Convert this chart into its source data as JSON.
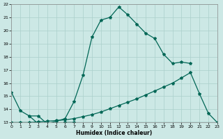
{
  "xlabel": "Humidex (Indice chaleur)",
  "xlim": [
    0,
    23
  ],
  "ylim": [
    13,
    22
  ],
  "xticks": [
    0,
    1,
    2,
    3,
    4,
    5,
    6,
    7,
    8,
    9,
    10,
    11,
    12,
    13,
    14,
    15,
    16,
    17,
    18,
    19,
    20,
    21,
    22,
    23
  ],
  "yticks": [
    13,
    14,
    15,
    16,
    17,
    18,
    19,
    20,
    21,
    22
  ],
  "bg_color": "#cce8e5",
  "grid_color": "#aacfcb",
  "line_color": "#006655",
  "curve_main_x": [
    2,
    3,
    4,
    5,
    6,
    7,
    8,
    9,
    10,
    11,
    12,
    13,
    14,
    15,
    16,
    17,
    18,
    19,
    20
  ],
  "curve_main_y": [
    13.5,
    13.5,
    12.9,
    13.1,
    13.3,
    14.6,
    16.6,
    19.5,
    20.8,
    21.0,
    21.8,
    21.2,
    20.5,
    19.8,
    19.4,
    18.2,
    17.5,
    17.6,
    17.5
  ],
  "curve_short_x": [
    0,
    1,
    2,
    3,
    4,
    5,
    6,
    7
  ],
  "curve_short_y": [
    15.3,
    13.9,
    13.5,
    12.9,
    12.9,
    12.9,
    13.0,
    13.0
  ],
  "line_flat_x": [
    2,
    3,
    4,
    5,
    6,
    7,
    8,
    9,
    10,
    11,
    12,
    13,
    14,
    15,
    16,
    17,
    18,
    19,
    20,
    21,
    22,
    23
  ],
  "line_flat_y": [
    13.0,
    13.0,
    13.0,
    13.0,
    13.0,
    13.0,
    13.0,
    13.0,
    13.0,
    13.0,
    13.0,
    13.0,
    13.0,
    13.0,
    13.0,
    13.0,
    13.0,
    13.0,
    13.0,
    13.0,
    13.0,
    13.0
  ],
  "curve_diag_x": [
    0,
    1,
    2,
    3,
    4,
    5,
    6,
    7,
    8,
    9,
    10,
    11,
    12,
    13,
    14,
    15,
    16,
    17,
    18,
    19,
    20,
    21,
    22,
    23
  ],
  "curve_diag_y": [
    13.0,
    13.0,
    13.0,
    13.05,
    13.1,
    13.15,
    13.2,
    13.3,
    13.45,
    13.6,
    13.8,
    14.05,
    14.3,
    14.55,
    14.8,
    15.1,
    15.4,
    15.7,
    16.0,
    16.4,
    16.8,
    15.2,
    13.7,
    13.0
  ]
}
